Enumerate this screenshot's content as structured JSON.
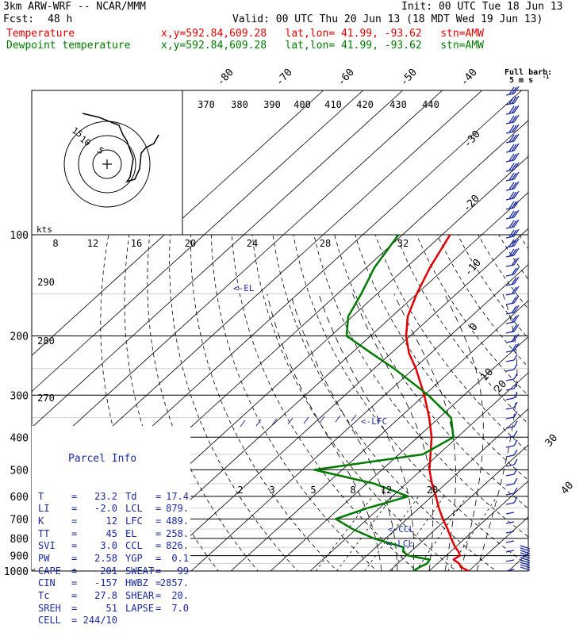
{
  "header": {
    "model": "3km ARW-WRF -- NCAR/MMM",
    "init": "Init: 00 UTC Tue 18 Jun 13",
    "fcst_label": "Fcst:",
    "fcst_value": "48 h",
    "valid": "Valid: 00 UTC Thu 20 Jun 13 (18 MDT Wed 19 Jun 13)",
    "temp_label": "Temperature",
    "temp_loc": "x,y=592.84,609.28   lat,lon= 41.99, -93.62   stn=AMW",
    "dew_label": "Dewpoint temperature",
    "dew_loc": "x,y=592.84,609.28   lat,lon= 41.99, -93.62   stn=AMW"
  },
  "barb_key": {
    "title": "Full barb:",
    "value": "5 m s",
    "exponent": "-1"
  },
  "parcel_info": {
    "title": "Parcel Info",
    "rows": [
      {
        "l1": "T",
        "v1": "23.2",
        "l2": "Td",
        "v2": "17.4"
      },
      {
        "l1": "LI",
        "v1": "-2.0",
        "l2": "LCL",
        "v2": "879."
      },
      {
        "l1": "K",
        "v1": "12",
        "l2": "LFC",
        "v2": "489."
      },
      {
        "l1": "TT",
        "v1": "45",
        "l2": "EL",
        "v2": "258."
      },
      {
        "l1": "SVI",
        "v1": "3.0",
        "l2": "CCL",
        "v2": "826."
      },
      {
        "l1": "PW",
        "v1": "2.58",
        "l2": "YGP",
        "v2": "0.1"
      },
      {
        "l1": "CAPE",
        "v1": "201",
        "l2": "SWEAT",
        "v2": "99"
      },
      {
        "l1": "CIN",
        "v1": "-157",
        "l2": "HWBZ",
        "v2": "2857."
      },
      {
        "l1": "Tc",
        "v1": "27.8",
        "l2": "SHEAR",
        "v2": "20."
      },
      {
        "l1": "SREH",
        "v1": "51",
        "l2": "LAPSE",
        "v2": "7.0"
      },
      {
        "l1": "CELL",
        "v1": "244/10",
        "l2": "",
        "v2": ""
      }
    ]
  },
  "hodograph": {
    "units_label": "kts",
    "speed_ticks": [
      "8",
      "12",
      "16",
      "20",
      "24",
      "28",
      "32"
    ],
    "ring_labels": [
      "5",
      "10",
      "15"
    ]
  },
  "chart_data": {
    "type": "line",
    "title": "",
    "pressure_axis": {
      "ticks": [
        100,
        200,
        300,
        400,
        500,
        600,
        700,
        800,
        900,
        1000
      ],
      "log_scale": true
    },
    "isotherm_labels": [
      "-80",
      "-70",
      "-60",
      "-50",
      "-40",
      "-30",
      "-20",
      "-10",
      "0",
      "10",
      "20",
      "30",
      "40"
    ],
    "theta_labels": [
      "370",
      "380",
      "390",
      "400",
      "410",
      "420",
      "430",
      "440",
      "290",
      "280",
      "270"
    ],
    "mixing_ratio_labels": [
      "2",
      "3",
      "5",
      "8",
      "12",
      "20"
    ],
    "level_annotations": [
      "<-EL",
      "<-LFC",
      "<-CCL",
      "<-LCL"
    ],
    "series": [
      {
        "name": "Temperature",
        "color": "#e00000",
        "points": [
          [
            1000,
            30.0
          ],
          [
            975,
            27.0
          ],
          [
            950,
            25.5
          ],
          [
            925,
            23.0
          ],
          [
            900,
            23.5
          ],
          [
            875,
            22.0
          ],
          [
            850,
            20.0
          ],
          [
            800,
            16.5
          ],
          [
            750,
            13.0
          ],
          [
            700,
            9.0
          ],
          [
            650,
            5.0
          ],
          [
            600,
            1.0
          ],
          [
            550,
            -3.5
          ],
          [
            500,
            -8.0
          ],
          [
            450,
            -12.0
          ],
          [
            400,
            -16.5
          ],
          [
            350,
            -22.5
          ],
          [
            300,
            -30.0
          ],
          [
            250,
            -39.5
          ],
          [
            225,
            -45.5
          ],
          [
            200,
            -51.0
          ],
          [
            175,
            -56.0
          ],
          [
            150,
            -60.0
          ],
          [
            125,
            -64.0
          ],
          [
            100,
            -68.0
          ]
        ]
      },
      {
        "name": "Dewpoint temperature",
        "color": "#007a00",
        "points": [
          [
            1000,
            16.0
          ],
          [
            975,
            16.5
          ],
          [
            950,
            17.4
          ],
          [
            925,
            17.0
          ],
          [
            900,
            10.5
          ],
          [
            875,
            8.0
          ],
          [
            850,
            7.0
          ],
          [
            800,
            -3.0
          ],
          [
            750,
            -11.0
          ],
          [
            700,
            -18.0
          ],
          [
            650,
            -13.0
          ],
          [
            600,
            -6.0
          ],
          [
            550,
            -18.0
          ],
          [
            500,
            -37.0
          ],
          [
            450,
            -14.0
          ],
          [
            400,
            -11.0
          ],
          [
            350,
            -17.0
          ],
          [
            300,
            -29.0
          ],
          [
            250,
            -45.0
          ],
          [
            225,
            -55.0
          ],
          [
            200,
            -66.0
          ],
          [
            175,
            -71.0
          ],
          [
            150,
            -74.0
          ],
          [
            125,
            -78.0
          ],
          [
            100,
            -81.0
          ]
        ]
      }
    ]
  }
}
